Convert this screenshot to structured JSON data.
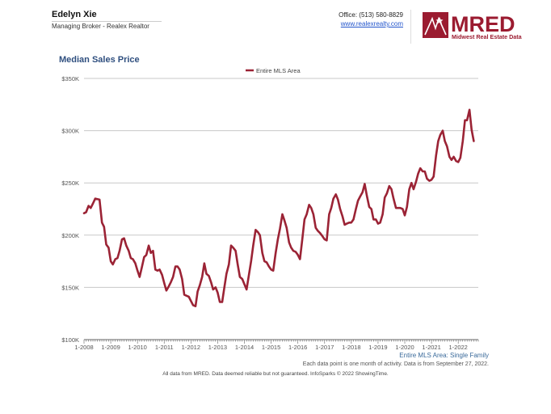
{
  "agent": {
    "name": "Edelyn Xie",
    "title": "Managing Broker - Realex Realtor",
    "office": "Office: (513) 580-8829",
    "website": "www.realexrealty.com"
  },
  "logo": {
    "text": "MRED",
    "subtitle": "Midwest Real Estate Data",
    "color": "#9b1b30"
  },
  "chart_data": {
    "type": "line",
    "title": "Median Sales Price",
    "xlabel": "",
    "ylabel": "",
    "legend": "Entire MLS Area",
    "legend_position": "top-center",
    "series_color": "#9b2335",
    "grid": true,
    "x_ticks": [
      "1-2008",
      "1-2009",
      "1-2010",
      "1-2011",
      "1-2012",
      "1-2013",
      "1-2014",
      "1-2015",
      "1-2016",
      "1-2017",
      "1-2018",
      "1-2019",
      "1-2020",
      "1-2021",
      "1-2022"
    ],
    "y_ticks": [
      "$100K",
      "$150K",
      "$200K",
      "$250K",
      "$300K",
      "$350K"
    ],
    "y_tick_values": [
      100000,
      150000,
      200000,
      250000,
      300000,
      350000
    ],
    "ylim": [
      100000,
      350000
    ],
    "xlim": [
      2008.0,
      2022.75
    ],
    "series": [
      {
        "name": "Entire MLS Area",
        "points": [
          [
            2008.0,
            221000
          ],
          [
            2008.08,
            222000
          ],
          [
            2008.17,
            228000
          ],
          [
            2008.25,
            226000
          ],
          [
            2008.33,
            230000
          ],
          [
            2008.42,
            235000
          ],
          [
            2008.58,
            234000
          ],
          [
            2008.67,
            212000
          ],
          [
            2008.75,
            208000
          ],
          [
            2008.83,
            191000
          ],
          [
            2008.92,
            188000
          ],
          [
            2009.0,
            175000
          ],
          [
            2009.08,
            172000
          ],
          [
            2009.17,
            177000
          ],
          [
            2009.25,
            178000
          ],
          [
            2009.33,
            185000
          ],
          [
            2009.42,
            196000
          ],
          [
            2009.5,
            197000
          ],
          [
            2009.58,
            190000
          ],
          [
            2009.67,
            185000
          ],
          [
            2009.75,
            178000
          ],
          [
            2009.83,
            177000
          ],
          [
            2009.92,
            173000
          ],
          [
            2010.0,
            166000
          ],
          [
            2010.08,
            160000
          ],
          [
            2010.17,
            170000
          ],
          [
            2010.25,
            179000
          ],
          [
            2010.33,
            181000
          ],
          [
            2010.42,
            190000
          ],
          [
            2010.5,
            183000
          ],
          [
            2010.58,
            185000
          ],
          [
            2010.67,
            167000
          ],
          [
            2010.75,
            166000
          ],
          [
            2010.83,
            167000
          ],
          [
            2010.92,
            162000
          ],
          [
            2011.0,
            154000
          ],
          [
            2011.08,
            147000
          ],
          [
            2011.17,
            151000
          ],
          [
            2011.25,
            155000
          ],
          [
            2011.33,
            160000
          ],
          [
            2011.42,
            170000
          ],
          [
            2011.5,
            170000
          ],
          [
            2011.58,
            167000
          ],
          [
            2011.67,
            158000
          ],
          [
            2011.75,
            143000
          ],
          [
            2011.83,
            142000
          ],
          [
            2011.92,
            141000
          ],
          [
            2012.0,
            137000
          ],
          [
            2012.08,
            133000
          ],
          [
            2012.17,
            132000
          ],
          [
            2012.25,
            146000
          ],
          [
            2012.33,
            152000
          ],
          [
            2012.42,
            160000
          ],
          [
            2012.5,
            173000
          ],
          [
            2012.58,
            163000
          ],
          [
            2012.67,
            161000
          ],
          [
            2012.75,
            155000
          ],
          [
            2012.83,
            148000
          ],
          [
            2012.92,
            150000
          ],
          [
            2013.0,
            145000
          ],
          [
            2013.08,
            136000
          ],
          [
            2013.17,
            136000
          ],
          [
            2013.25,
            150000
          ],
          [
            2013.33,
            163000
          ],
          [
            2013.42,
            172000
          ],
          [
            2013.5,
            190000
          ],
          [
            2013.58,
            188000
          ],
          [
            2013.67,
            185000
          ],
          [
            2013.75,
            172000
          ],
          [
            2013.83,
            160000
          ],
          [
            2013.92,
            158000
          ],
          [
            2014.0,
            153000
          ],
          [
            2014.08,
            148000
          ],
          [
            2014.17,
            162000
          ],
          [
            2014.25,
            175000
          ],
          [
            2014.33,
            190000
          ],
          [
            2014.42,
            205000
          ],
          [
            2014.5,
            203000
          ],
          [
            2014.58,
            200000
          ],
          [
            2014.67,
            183000
          ],
          [
            2014.75,
            175000
          ],
          [
            2014.83,
            174000
          ],
          [
            2014.92,
            170000
          ],
          [
            2015.0,
            167000
          ],
          [
            2015.08,
            166000
          ],
          [
            2015.17,
            183000
          ],
          [
            2015.25,
            196000
          ],
          [
            2015.33,
            206000
          ],
          [
            2015.42,
            220000
          ],
          [
            2015.5,
            214000
          ],
          [
            2015.58,
            207000
          ],
          [
            2015.67,
            193000
          ],
          [
            2015.75,
            188000
          ],
          [
            2015.83,
            185000
          ],
          [
            2015.92,
            184000
          ],
          [
            2016.0,
            181000
          ],
          [
            2016.08,
            177000
          ],
          [
            2016.17,
            197000
          ],
          [
            2016.25,
            215000
          ],
          [
            2016.33,
            220000
          ],
          [
            2016.42,
            229000
          ],
          [
            2016.5,
            226000
          ],
          [
            2016.58,
            220000
          ],
          [
            2016.67,
            207000
          ],
          [
            2016.75,
            204000
          ],
          [
            2016.83,
            202000
          ],
          [
            2016.92,
            199000
          ],
          [
            2017.0,
            196000
          ],
          [
            2017.08,
            195000
          ],
          [
            2017.17,
            220000
          ],
          [
            2017.25,
            226000
          ],
          [
            2017.33,
            235000
          ],
          [
            2017.42,
            239000
          ],
          [
            2017.5,
            234000
          ],
          [
            2017.58,
            225000
          ],
          [
            2017.67,
            218000
          ],
          [
            2017.75,
            210000
          ],
          [
            2017.83,
            211000
          ],
          [
            2017.92,
            212000
          ],
          [
            2018.0,
            212000
          ],
          [
            2018.08,
            215000
          ],
          [
            2018.17,
            225000
          ],
          [
            2018.25,
            233000
          ],
          [
            2018.33,
            237000
          ],
          [
            2018.42,
            241000
          ],
          [
            2018.5,
            249000
          ],
          [
            2018.58,
            238000
          ],
          [
            2018.67,
            227000
          ],
          [
            2018.75,
            225000
          ],
          [
            2018.83,
            215000
          ],
          [
            2018.92,
            215000
          ],
          [
            2019.0,
            211000
          ],
          [
            2019.08,
            212000
          ],
          [
            2019.17,
            220000
          ],
          [
            2019.25,
            236000
          ],
          [
            2019.33,
            240000
          ],
          [
            2019.42,
            247000
          ],
          [
            2019.5,
            244000
          ],
          [
            2019.58,
            235000
          ],
          [
            2019.67,
            226000
          ],
          [
            2019.75,
            226000
          ],
          [
            2019.83,
            226000
          ],
          [
            2019.92,
            225000
          ],
          [
            2020.0,
            219000
          ],
          [
            2020.08,
            227000
          ],
          [
            2020.17,
            244000
          ],
          [
            2020.25,
            250000
          ],
          [
            2020.33,
            244000
          ],
          [
            2020.42,
            251000
          ],
          [
            2020.5,
            259000
          ],
          [
            2020.58,
            264000
          ],
          [
            2020.67,
            261000
          ],
          [
            2020.75,
            261000
          ],
          [
            2020.83,
            254000
          ],
          [
            2020.92,
            252000
          ],
          [
            2021.0,
            253000
          ],
          [
            2021.08,
            256000
          ],
          [
            2021.17,
            276000
          ],
          [
            2021.25,
            290000
          ],
          [
            2021.33,
            296000
          ],
          [
            2021.42,
            300000
          ],
          [
            2021.5,
            290000
          ],
          [
            2021.58,
            285000
          ],
          [
            2021.67,
            275000
          ],
          [
            2021.75,
            272000
          ],
          [
            2021.83,
            275000
          ],
          [
            2021.92,
            271000
          ],
          [
            2022.0,
            270000
          ],
          [
            2022.08,
            274000
          ],
          [
            2022.17,
            290000
          ],
          [
            2022.25,
            310000
          ],
          [
            2022.33,
            310000
          ],
          [
            2022.42,
            320000
          ],
          [
            2022.5,
            301000
          ],
          [
            2022.58,
            290000
          ]
        ]
      }
    ],
    "source_label": "Entire MLS Area: Single Family",
    "note": "Each data point is one month of activity. Data is from September 27, 2022.",
    "disclaimer": "All data from MRED. Data deemed reliable but not guaranteed. InfoSparks © 2022 ShowingTime."
  }
}
